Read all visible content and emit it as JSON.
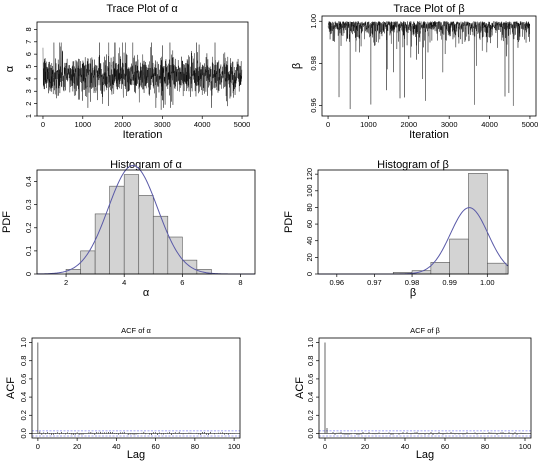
{
  "charts": [
    {
      "type": "line",
      "title": "Trace Plot of α",
      "xlabel": "Iteration",
      "ylabel": "α",
      "xticks": [
        0,
        1000,
        2000,
        3000,
        4000,
        5000
      ],
      "yticks": [
        1,
        2,
        3,
        4,
        5,
        6,
        7,
        8
      ],
      "xlim": [
        -150,
        5150
      ],
      "ylim": [
        1,
        8.6
      ],
      "series": [
        {
          "n_iterations": 5000,
          "mean": 4.3,
          "sd": 0.8,
          "min": 1.5,
          "max": 8.3
        }
      ]
    },
    {
      "type": "line",
      "title": "Trace Plot of β",
      "xlabel": "Iteration",
      "ylabel": "β",
      "xticks": [
        0,
        1000,
        2000,
        3000,
        4000,
        5000
      ],
      "yticks": [
        0.96,
        0.98,
        1.0
      ],
      "ytick_labels": [
        "0.96",
        "0.98",
        "1.00"
      ],
      "xlim": [
        -150,
        5150
      ],
      "ylim": [
        0.955,
        1.0025
      ],
      "series": [
        {
          "n_iterations": 5000,
          "center": 0.995,
          "upper_bound": 1.0,
          "min": 0.958
        }
      ]
    },
    {
      "type": "bar",
      "title": "Histogram of α",
      "xlabel": "α",
      "ylabel": "PDF",
      "xticks": [
        2,
        4,
        6,
        8
      ],
      "yticks": [
        0.0,
        0.1,
        0.2,
        0.3,
        0.4
      ],
      "xlim": [
        1.0,
        8.5
      ],
      "ylim": [
        0,
        0.45
      ],
      "bins": [
        {
          "x0": 2.0,
          "x1": 2.5,
          "value": 0.02
        },
        {
          "x0": 2.5,
          "x1": 3.0,
          "value": 0.1
        },
        {
          "x0": 3.0,
          "x1": 3.5,
          "value": 0.26
        },
        {
          "x0": 3.5,
          "x1": 4.0,
          "value": 0.38
        },
        {
          "x0": 4.0,
          "x1": 4.5,
          "value": 0.43
        },
        {
          "x0": 4.5,
          "x1": 5.0,
          "value": 0.34
        },
        {
          "x0": 5.0,
          "x1": 5.5,
          "value": 0.25
        },
        {
          "x0": 5.5,
          "x1": 6.0,
          "value": 0.16
        },
        {
          "x0": 6.0,
          "x1": 6.5,
          "value": 0.06
        },
        {
          "x0": 6.5,
          "x1": 7.0,
          "value": 0.02
        }
      ],
      "density_curve": {
        "mean": 4.3,
        "sd": 0.85,
        "color": "#5a5aa8"
      }
    },
    {
      "type": "bar",
      "title": "Histogram of β",
      "xlabel": "β",
      "ylabel": "PDF",
      "xticks": [
        0.96,
        0.97,
        0.98,
        0.99,
        1.0
      ],
      "xtick_labels": [
        "0.96",
        "0.97",
        "0.98",
        "0.99",
        "1.00"
      ],
      "yticks": [
        0,
        20,
        40,
        60,
        80,
        100,
        120
      ],
      "xlim": [
        0.955,
        1.0055
      ],
      "ylim": [
        0,
        125
      ],
      "bins": [
        {
          "x0": 0.975,
          "x1": 0.98,
          "value": 2
        },
        {
          "x0": 0.98,
          "x1": 0.985,
          "value": 4
        },
        {
          "x0": 0.985,
          "x1": 0.99,
          "value": 14
        },
        {
          "x0": 0.99,
          "x1": 0.995,
          "value": 42
        },
        {
          "x0": 0.995,
          "x1": 1.0,
          "value": 121
        },
        {
          "x0": 1.0,
          "x1": 1.005,
          "value": 13
        }
      ],
      "density_curve": {
        "mean": 0.9952,
        "sd": 0.005,
        "color": "#5a5aa8"
      }
    },
    {
      "type": "bar",
      "title": "ACF of α",
      "xlabel": "Lag",
      "ylabel": "ACF",
      "xticks": [
        0,
        20,
        40,
        60,
        80,
        100
      ],
      "yticks": [
        0.0,
        0.2,
        0.4,
        0.6,
        0.8,
        1.0
      ],
      "ytick_labels": [
        "0.0",
        "0.2",
        "0.4",
        "0.6",
        "0.8",
        "1.0"
      ],
      "xlim": [
        -3,
        103
      ],
      "ylim": [
        -0.05,
        1.05
      ],
      "lags": 100,
      "acf_lag0": 1.0,
      "acf_lag1": 0.02,
      "confidence_bound": 0.028,
      "confidence_color": "#4a4af0"
    },
    {
      "type": "bar",
      "title": "ACF of β",
      "xlabel": "Lag",
      "ylabel": "ACF",
      "xticks": [
        0,
        20,
        40,
        60,
        80,
        100
      ],
      "yticks": [
        0.0,
        0.2,
        0.4,
        0.6,
        0.8,
        1.0
      ],
      "ytick_labels": [
        "0.0",
        "0.2",
        "0.4",
        "0.6",
        "0.8",
        "1.0"
      ],
      "xlim": [
        -3,
        103
      ],
      "ylim": [
        -0.05,
        1.05
      ],
      "lags": 100,
      "acf_lag0": 1.0,
      "acf_lag1": 0.06,
      "confidence_bound": 0.028,
      "confidence_color": "#4a4af0"
    }
  ]
}
